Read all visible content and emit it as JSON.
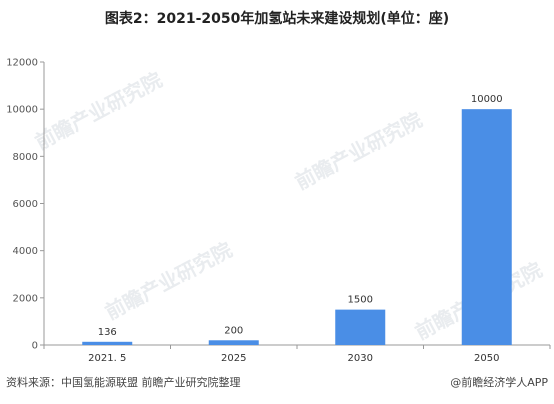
{
  "chart_data": {
    "type": "bar",
    "title": "图表2：2021-2050年加氢站未来建设规划(单位：座)",
    "categories": [
      "2021. 5",
      "2025",
      "2030",
      "2050"
    ],
    "values": [
      136,
      200,
      1500,
      10000
    ],
    "data_labels": [
      "136",
      "200",
      "1500",
      "10000"
    ],
    "ylim": [
      0,
      12000
    ],
    "yticks": [
      0,
      2000,
      4000,
      6000,
      8000,
      10000,
      12000
    ],
    "xlabel": "",
    "ylabel": "",
    "grid": false,
    "bar_color": "#4a8ee6"
  },
  "footer": {
    "source": "资料来源：中国氢能源联盟 前瞻产业研究院整理",
    "brand": "@前瞻经济学人APP"
  },
  "watermark": {
    "text": "前瞻产业研究院"
  }
}
